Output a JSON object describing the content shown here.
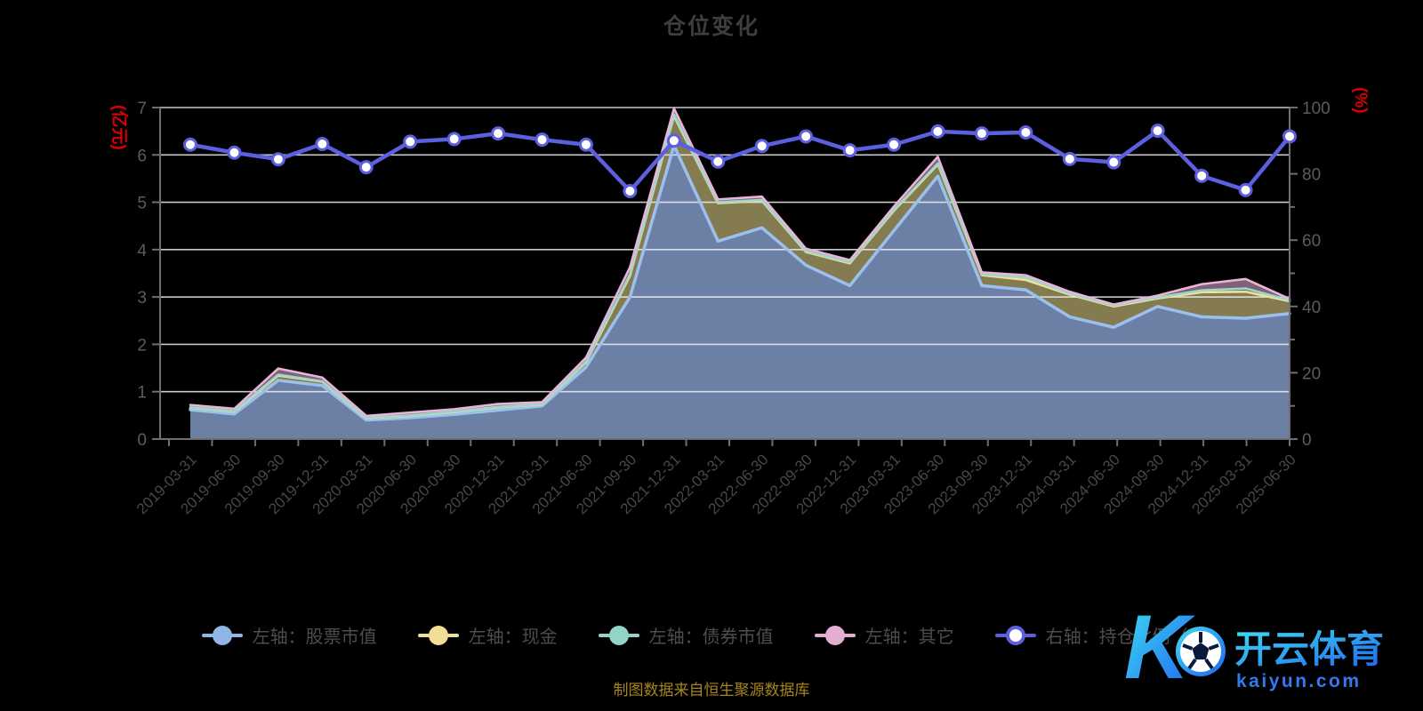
{
  "title": "仓位变化",
  "source_note": "制图数据来自恒生聚源数据库",
  "watermark": {
    "logo_letter": "K",
    "brand": "开云体育",
    "domain": "kaiyun.com",
    "color_start": "#3fdef4",
    "color_end": "#1e63ee",
    "domain_color": "#2e7bf2"
  },
  "colors": {
    "background": "#000000",
    "title_text": "#3e3e3e",
    "axis_line": "#6f6f6f",
    "grid_line": "#ececec",
    "tick_label": "#5c5c5c",
    "x_label": "#474747",
    "axis_name_red": "#dc0000",
    "legend_text": "#4d4d4d",
    "source_text": "#a8851c"
  },
  "chart_data": {
    "type": "area+line",
    "title": "仓位变化",
    "x": [
      "2019-03-31",
      "2019-06-30",
      "2019-09-30",
      "2019-12-31",
      "2020-03-31",
      "2020-06-30",
      "2020-09-30",
      "2020-12-31",
      "2021-03-31",
      "2021-06-30",
      "2021-09-30",
      "2021-12-31",
      "2022-03-31",
      "2022-06-30",
      "2022-09-30",
      "2022-12-31",
      "2023-03-31",
      "2023-06-30",
      "2023-09-30",
      "2023-12-31",
      "2024-03-31",
      "2024-06-30",
      "2024-09-30",
      "2024-12-31",
      "2025-03-31",
      "2025-06-30"
    ],
    "left_axis": {
      "label": "(亿元)",
      "range": [
        0,
        7
      ],
      "ticks": [
        0,
        1,
        2,
        3,
        4,
        5,
        6,
        7
      ]
    },
    "right_axis": {
      "label": "(%)",
      "range": [
        0,
        100
      ],
      "ticks": [
        0,
        20,
        40,
        60,
        80,
        100
      ],
      "minor_tick_step": 10
    },
    "grid": {
      "horizontal": true,
      "vertical": false
    },
    "legend_position": "bottom",
    "series": [
      {
        "name": "左轴：股票市值",
        "key": "stock",
        "axis": "left",
        "type": "area",
        "stacked": true,
        "fill": "#6c80a6",
        "stroke": "#9cc0ee",
        "legend_color": "#8fb6e6",
        "values": [
          0.62,
          0.53,
          1.24,
          1.13,
          0.4,
          0.45,
          0.52,
          0.61,
          0.7,
          1.52,
          3.0,
          6.2,
          4.18,
          4.46,
          3.67,
          3.24,
          4.4,
          5.55,
          3.24,
          3.15,
          2.58,
          2.36,
          2.8,
          2.58,
          2.55,
          2.65
        ]
      },
      {
        "name": "左轴：现金",
        "key": "cash",
        "axis": "left",
        "type": "area",
        "stacked": true,
        "fill": "rgba(243,224,148,0.55)",
        "stroke": "#f3e094",
        "legend_color": "#f1df97",
        "values": [
          0.04,
          0.05,
          0.1,
          0.08,
          0.04,
          0.04,
          0.05,
          0.06,
          0.03,
          0.1,
          0.45,
          0.62,
          0.8,
          0.57,
          0.28,
          0.47,
          0.42,
          0.25,
          0.22,
          0.21,
          0.47,
          0.44,
          0.17,
          0.52,
          0.56,
          0.26
        ]
      },
      {
        "name": "左轴：债券市值",
        "key": "bond",
        "axis": "left",
        "type": "area",
        "stacked": true,
        "fill": "rgba(150,216,202,0.55)",
        "stroke": "#9ad8cb",
        "legend_color": "#92d4c8",
        "values": [
          0.01,
          0.01,
          0.02,
          0.01,
          0.01,
          0.01,
          0.01,
          0.01,
          0.01,
          0.02,
          0.03,
          0.03,
          0.02,
          0.02,
          0.02,
          0.02,
          0.02,
          0.02,
          0.02,
          0.05,
          0.02,
          0.02,
          0.02,
          0.04,
          0.07,
          0.02
        ]
      },
      {
        "name": "左轴：其它",
        "key": "other",
        "axis": "left",
        "type": "area",
        "stacked": true,
        "fill": "rgba(233,177,216,0.55)",
        "stroke": "#eab3da",
        "legend_color": "#e3aed2",
        "values": [
          0.05,
          0.05,
          0.13,
          0.08,
          0.04,
          0.06,
          0.05,
          0.06,
          0.04,
          0.08,
          0.15,
          0.13,
          0.06,
          0.07,
          0.05,
          0.05,
          0.07,
          0.14,
          0.04,
          0.05,
          0.04,
          0.02,
          0.04,
          0.13,
          0.2,
          0.03
        ]
      },
      {
        "name": "右轴：持仓比例（%）",
        "key": "ratio",
        "axis": "right",
        "type": "line",
        "stroke": "#5b5fe0",
        "marker_fill": "#ffffff",
        "legend_color": "#5b5fe0",
        "values": [
          88.8,
          86.4,
          84.4,
          89.0,
          82.0,
          89.7,
          90.5,
          92.2,
          90.3,
          88.8,
          74.8,
          90.0,
          83.7,
          88.4,
          91.3,
          87.1,
          88.8,
          92.8,
          92.2,
          92.5,
          84.5,
          83.5,
          93.0,
          79.4,
          75.1,
          91.3
        ]
      }
    ]
  }
}
